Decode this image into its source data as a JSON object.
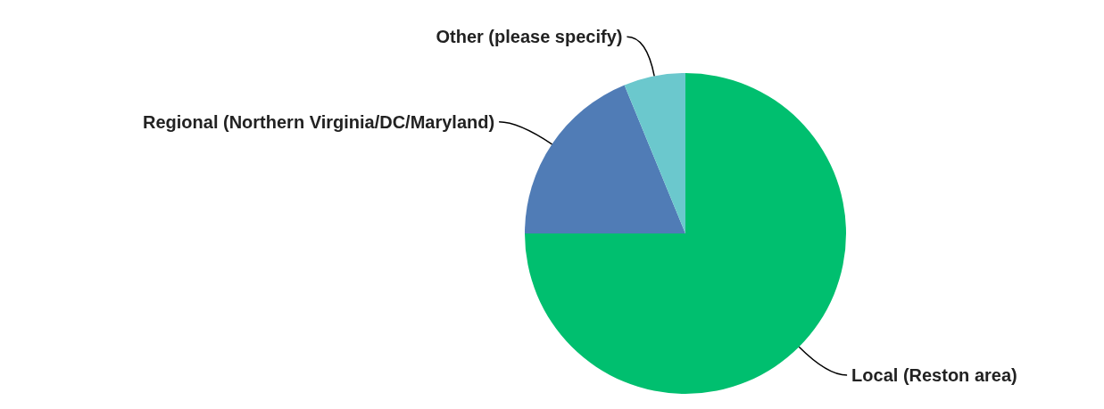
{
  "chart_data": {
    "type": "pie",
    "categories": [
      "Local (Reston area)",
      "Regional (Northern Virginia/DC/Maryland)",
      "Other (please specify)"
    ],
    "values": [
      75,
      18.8,
      6.2
    ],
    "colors": [
      "#00bf6f",
      "#507cb6",
      "#6bc8cd"
    ]
  }
}
